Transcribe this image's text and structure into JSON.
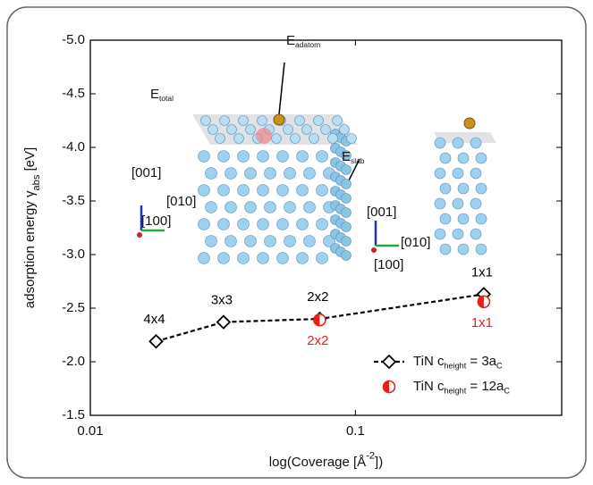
{
  "chart_data": {
    "type": "line",
    "x_scale": "log",
    "xlim": [
      0.01,
      0.6
    ],
    "xticks": [
      0.01,
      0.1
    ],
    "ylim": [
      -1.5,
      -5.0
    ],
    "yticks": [
      {
        "value": -1.5,
        "label": "-1.5"
      },
      {
        "value": -2.0,
        "label": "-2.0"
      },
      {
        "value": -2.5,
        "label": "-2.5"
      },
      {
        "value": -3.0,
        "label": "-3.0"
      },
      {
        "value": -3.5,
        "label": "-3.5"
      },
      {
        "value": -4.0,
        "label": "-4.0"
      },
      {
        "value": -4.5,
        "label": "-4.5"
      },
      {
        "value": -5.0,
        "label": "-5.0"
      }
    ],
    "xlabel": [
      {
        "text": "log(Coverage [Å"
      },
      {
        "text": "-2",
        "sup": true
      },
      {
        "text": "])"
      }
    ],
    "ylabel": [
      {
        "text": "adsorption energy γ"
      },
      {
        "text": "abs",
        "sub": true
      },
      {
        "text": " [eV]"
      }
    ],
    "series": [
      {
        "name": [
          {
            "text": "TiN c"
          },
          {
            "text": "height",
            "sub": true
          },
          {
            "text": " = 3a"
          },
          {
            "text": "C",
            "sub": true
          }
        ],
        "color": "#000000",
        "marker": "diamond",
        "line_style": "dashed",
        "x": [
          0.0177,
          0.0318,
          0.0733,
          0.305
        ],
        "values": [
          -2.19,
          -2.37,
          -2.4,
          -2.63
        ],
        "point_labels": [
          "4x4",
          "3x3",
          "2x2",
          "1x1"
        ]
      },
      {
        "name": [
          {
            "text": "TiN c"
          },
          {
            "text": "height",
            "sub": true
          },
          {
            "text": " = 12a"
          },
          {
            "text": "C",
            "sub": true
          }
        ],
        "color": "#e8201a",
        "marker": "half-circle",
        "line_style": "none",
        "x": [
          0.0733,
          0.305
        ],
        "values": [
          -2.39,
          -2.56
        ],
        "point_labels": [
          "2x2",
          "1x1"
        ]
      }
    ],
    "annotations": [
      [
        {
          "text": "E"
        },
        {
          "text": "total",
          "sub": true
        }
      ],
      [
        {
          "text": "E"
        },
        {
          "text": "adatom",
          "sub": true
        }
      ],
      [
        {
          "text": "E"
        },
        {
          "text": "slab",
          "sub": true
        }
      ],
      [
        {
          "text": "[001]"
        }
      ],
      [
        {
          "text": "[010]"
        }
      ],
      [
        {
          "text": "[100]"
        }
      ],
      [
        {
          "text": "[001]"
        }
      ],
      [
        {
          "text": "[010]"
        }
      ],
      [
        {
          "text": "[100]"
        }
      ]
    ]
  }
}
